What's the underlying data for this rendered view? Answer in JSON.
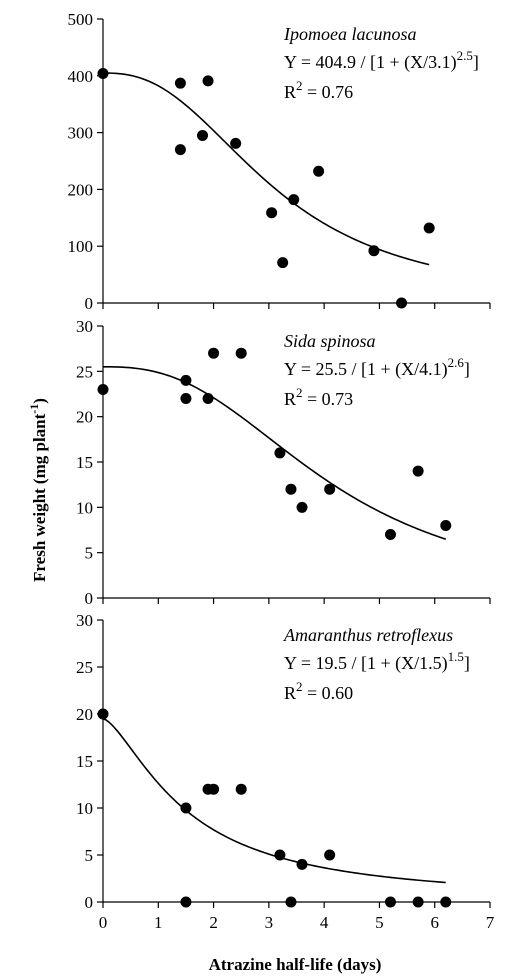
{
  "chart_data": {
    "type": "scatter",
    "xlabel": "Atrazine half-life (days)",
    "ylabel": "Fresh weight (mg plant",
    "ylabel_superscript": "-1",
    "ylabel_suffix": ")",
    "x_ticks": [
      "0",
      "1",
      "2",
      "3",
      "4",
      "5",
      "6",
      "7"
    ],
    "xlim": [
      0,
      7
    ],
    "panels": [
      {
        "species": "Ipomoea lacunosa",
        "equation": {
          "prefix": "Y = 404.9 / [1 + (X/3.1)",
          "exponent": "2.5",
          "suffix": "]"
        },
        "r2": {
          "label": "R",
          "sup": "2",
          "value": " = 0.76"
        },
        "ylim": [
          0,
          500
        ],
        "y_ticks": [
          "0",
          "100",
          "200",
          "300",
          "400",
          "500"
        ],
        "model": {
          "a": 404.9,
          "b": 3.1,
          "c": 2.5,
          "x_start": 0,
          "x_end": 5.9
        },
        "points": [
          {
            "x": 0,
            "y": 404
          },
          {
            "x": 1.4,
            "y": 387
          },
          {
            "x": 1.4,
            "y": 270
          },
          {
            "x": 1.8,
            "y": 295
          },
          {
            "x": 1.9,
            "y": 391
          },
          {
            "x": 2.4,
            "y": 281
          },
          {
            "x": 3.05,
            "y": 159
          },
          {
            "x": 3.25,
            "y": 71
          },
          {
            "x": 3.45,
            "y": 182
          },
          {
            "x": 3.9,
            "y": 232
          },
          {
            "x": 4.9,
            "y": 92
          },
          {
            "x": 5.4,
            "y": 0
          },
          {
            "x": 5.9,
            "y": 132
          }
        ]
      },
      {
        "species": "Sida spinosa",
        "equation": {
          "prefix": "Y = 25.5 / [1 + (X/4.1)",
          "exponent": "2.6",
          "suffix": "]"
        },
        "r2": {
          "label": "R",
          "sup": "2",
          "value": " = 0.73"
        },
        "ylim": [
          0,
          30
        ],
        "y_ticks": [
          "0",
          "5",
          "10",
          "15",
          "20",
          "25",
          "30"
        ],
        "model": {
          "a": 25.5,
          "b": 4.1,
          "c": 2.6,
          "x_start": 0,
          "x_end": 6.2
        },
        "points": [
          {
            "x": 0,
            "y": 23
          },
          {
            "x": 1.5,
            "y": 24
          },
          {
            "x": 1.5,
            "y": 22
          },
          {
            "x": 1.9,
            "y": 22
          },
          {
            "x": 2.0,
            "y": 27
          },
          {
            "x": 2.5,
            "y": 27
          },
          {
            "x": 3.2,
            "y": 16
          },
          {
            "x": 3.4,
            "y": 12
          },
          {
            "x": 3.6,
            "y": 10
          },
          {
            "x": 4.1,
            "y": 12
          },
          {
            "x": 5.2,
            "y": 7
          },
          {
            "x": 5.7,
            "y": 14
          },
          {
            "x": 6.2,
            "y": 8
          }
        ]
      },
      {
        "species": "Amaranthus retroflexus",
        "equation": {
          "prefix": "Y = 19.5 / [1 + (X/1.5)",
          "exponent": "1.5",
          "suffix": "]"
        },
        "r2": {
          "label": "R",
          "sup": "2",
          "value": " = 0.60"
        },
        "ylim": [
          0,
          30
        ],
        "y_ticks": [
          "0",
          "5",
          "10",
          "15",
          "20",
          "25",
          "30"
        ],
        "model": {
          "a": 19.5,
          "b": 1.5,
          "c": 1.5,
          "x_start": 0,
          "x_end": 6.2
        },
        "points": [
          {
            "x": 0,
            "y": 20
          },
          {
            "x": 1.5,
            "y": 10
          },
          {
            "x": 1.5,
            "y": 0
          },
          {
            "x": 1.9,
            "y": 12
          },
          {
            "x": 2.0,
            "y": 12
          },
          {
            "x": 2.5,
            "y": 12
          },
          {
            "x": 3.2,
            "y": 5
          },
          {
            "x": 3.4,
            "y": 0
          },
          {
            "x": 3.6,
            "y": 4
          },
          {
            "x": 4.1,
            "y": 5
          },
          {
            "x": 5.2,
            "y": 0
          },
          {
            "x": 5.7,
            "y": 0
          },
          {
            "x": 6.2,
            "y": 0
          }
        ]
      }
    ]
  }
}
